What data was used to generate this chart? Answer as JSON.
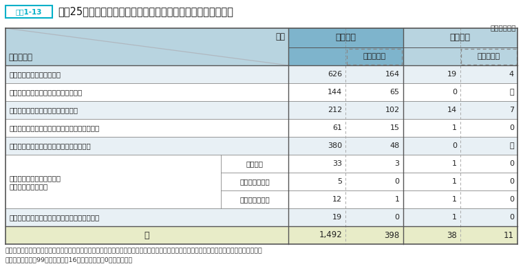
{
  "title": "平成25年度経験者採用試験の試験の種類別申込者数・合格者数",
  "label_tag": "資料1-13",
  "unit_text": "（単位：人）",
  "note_line1": "（注）　上記のほか、防衛省が特別職の職員の採用試験として実施し、人事院が当該試験の実施を支援する「防衛省経験者採用試験（係長級）」",
  "note_line2": "　　　（申込者数99人（うち女性16人）、合格者数0人）がある。",
  "header_item": "項目",
  "header_shiken": "試験の種類",
  "header_moshikomi": "申込者数",
  "header_goukaku": "合格者数",
  "header_josei": "うち女性数",
  "rows": [
    {
      "label": "経験者採用試験（係長級）",
      "sub": "",
      "v1": "626",
      "v2": "164",
      "v3": "19",
      "v4": "4",
      "merged": false
    },
    {
      "label": "外務省経験者採用試験（課長補佐級）",
      "sub": "",
      "v1": "144",
      "v2": "65",
      "v3": "0",
      "v4": "－",
      "merged": false
    },
    {
      "label": "外務省経験者採用試験（書記官級）",
      "sub": "",
      "v1": "212",
      "v2": "102",
      "v3": "14",
      "v4": "7",
      "merged": false
    },
    {
      "label": "農林水産省経験者採用試験（係長級（技術））",
      "sub": "",
      "v1": "61",
      "v2": "15",
      "v3": "1",
      "v4": "0",
      "merged": false
    },
    {
      "label": "経済産業省経験者採用試験（課長補佐級）",
      "sub": "",
      "v1": "380",
      "v2": "48",
      "v3": "0",
      "v4": "－",
      "merged": false
    },
    {
      "label": "国土交通省経験者採用試験",
      "label2": "（係長級（技術））",
      "sub": "本省区分",
      "v1": "33",
      "v2": "3",
      "v3": "1",
      "v4": "0",
      "merged": true,
      "merge_start": true
    },
    {
      "label": "",
      "label2": "",
      "sub": "国土地理院区分",
      "v1": "5",
      "v2": "0",
      "v3": "1",
      "v4": "0",
      "merged": true,
      "merge_start": false
    },
    {
      "label": "",
      "label2": "",
      "sub": "地方整備局区分",
      "v1": "12",
      "v2": "1",
      "v3": "1",
      "v4": "0",
      "merged": true,
      "merge_start": false
    },
    {
      "label": "海上保安庁経験者採用試験（係長級（技術））",
      "sub": "",
      "v1": "19",
      "v2": "0",
      "v3": "1",
      "v4": "0",
      "merged": false
    }
  ],
  "total_label": "計",
  "total_v1": "1,492",
  "total_v2": "398",
  "total_v3": "38",
  "total_v4": "11",
  "colors": {
    "tag_border": "#00b0c8",
    "tag_text": "#00b0c8",
    "header_left_bg": "#b8d4e0",
    "header_mid_bg": "#7eb4cc",
    "header_right_bg": "#b8d4e0",
    "subhdr_mid_bg": "#7eb4cc",
    "subhdr_right_bg": "#b8d4e0",
    "row_light": "#e8f0f5",
    "row_white": "#ffffff",
    "row_merged_bg": "#f0f6f9",
    "total_bg": "#e8ecc8",
    "border_dark": "#666666",
    "border_light": "#aaaaaa",
    "text": "#222222",
    "diag_line": "#b0b8c0"
  }
}
